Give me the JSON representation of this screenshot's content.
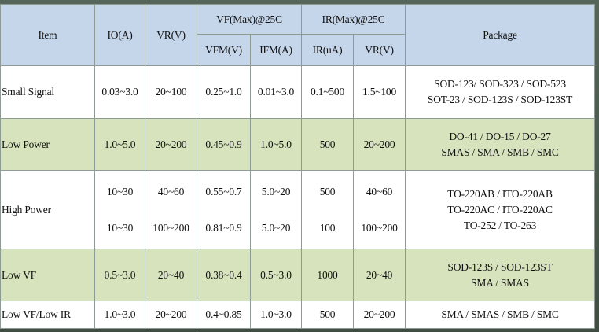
{
  "header": {
    "item": "Item",
    "io": "IO(A)",
    "vr": "VR(V)",
    "vf_group": "VF(Max)@25C",
    "ir_group": "IR(Max)@25C",
    "vfm": "VFM(V)",
    "ifm": "IFM(A)",
    "ir": "IR(uA)",
    "vr2": "VR(V)",
    "package": "Package"
  },
  "rows": [
    {
      "item": "Small Signal",
      "io": "0.03~3.0",
      "vr": "20~100",
      "vfm": "0.25~1.0",
      "ifm": "0.01~3.0",
      "ir": "0.1~500",
      "vr2": "1.5~100",
      "package": [
        "SOD-123/ SOD-323 / SOD-523",
        "SOT-23 / SOD-123S / SOD-123ST"
      ]
    },
    {
      "item": "Low Power",
      "io": "1.0~5.0",
      "vr": "20~200",
      "vfm": "0.45~0.9",
      "ifm": "1.0~5.0",
      "ir": "500",
      "vr2": "20~200",
      "package": [
        "DO-41 / DO-15 / DO-27",
        "SMAS / SMA / SMB / SMC"
      ]
    },
    {
      "item": "High Power",
      "io": [
        "10~30",
        "10~30"
      ],
      "vr": [
        "40~60",
        "100~200"
      ],
      "vfm": [
        "0.55~0.7",
        "0.81~0.9"
      ],
      "ifm": [
        "5.0~20",
        "5.0~20"
      ],
      "ir": [
        "500",
        "100"
      ],
      "vr2": [
        "40~60",
        "100~200"
      ],
      "package": [
        "TO-220AB / ITO-220AB",
        "TO-220AC / ITO-220AC",
        "TO-252 / TO-263"
      ]
    },
    {
      "item": "Low VF",
      "io": "0.5~3.0",
      "vr": "20~40",
      "vfm": "0.38~0.4",
      "ifm": "0.5~3.0",
      "ir": "1000",
      "vr2": "20~40",
      "package": [
        "SOD-123S / SOD-123ST",
        "SMA / SMAS"
      ]
    },
    {
      "item": "Low VF/Low IR",
      "io": "1.0~3.0",
      "vr": "20~200",
      "vfm": "0.4~0.85",
      "ifm": "1.0~3.0",
      "ir": "500",
      "vr2": "20~200",
      "package": [
        "SMA / SMAS / SMB / SMC"
      ]
    }
  ]
}
